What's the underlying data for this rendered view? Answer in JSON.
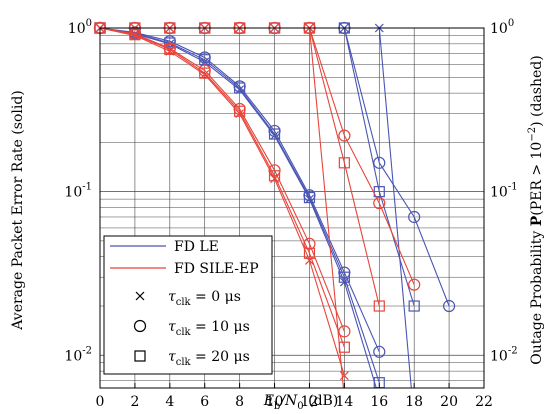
{
  "chart_data": {
    "type": "line",
    "xlabel": "E_b/N_0 (dB)",
    "ylabel_left": "Average Packet Error Rate (solid)",
    "ylabel_right": "Outage Probability P(PER > 10^-2) (dashed)",
    "xlim": [
      0,
      22
    ],
    "ylim_log": [
      -2.2,
      0
    ],
    "y_scale": "log",
    "grid": true,
    "x_ticks": [
      "0",
      "2",
      "4",
      "6",
      "8",
      "10",
      "12",
      "14",
      "16",
      "18",
      "20",
      "22"
    ],
    "y_ticks_left": [
      {
        "base": "10",
        "exp": "0",
        "val": 1
      },
      {
        "base": "10",
        "exp": "-1",
        "val": 0.1
      },
      {
        "base": "10",
        "exp": "-2",
        "val": 0.01
      }
    ],
    "y_ticks_right": [
      {
        "base": "10",
        "exp": "0",
        "val": 1
      },
      {
        "base": "10",
        "exp": "-1",
        "val": 0.1
      },
      {
        "base": "10",
        "exp": "-2",
        "val": 0.01
      }
    ],
    "colors": {
      "FD LE": "#4a55b5",
      "FD SILE-EP": "#e8443a"
    },
    "legend": {
      "placement": "bottom-left",
      "lines": [
        {
          "label": "FD LE",
          "color": "#4a55b5"
        },
        {
          "label": "FD SILE-EP",
          "color": "#e8443a"
        }
      ],
      "markers": [
        {
          "marker": "x",
          "symbol": "τ",
          "sub": "clk",
          "value": "= 0 μs"
        },
        {
          "marker": "o",
          "symbol": "τ",
          "sub": "clk",
          "value": "= 10 μs"
        },
        {
          "marker": "s",
          "symbol": "τ",
          "sub": "clk",
          "value": "= 20 μs"
        }
      ]
    },
    "series": [
      {
        "group": "FD LE",
        "kind": "solid",
        "marker": "x",
        "x": [
          0,
          2,
          4,
          6,
          8,
          10,
          12,
          14,
          16
        ],
        "y": [
          1.0,
          0.92,
          0.8,
          0.62,
          0.42,
          0.22,
          0.09,
          0.028,
          0.0055
        ]
      },
      {
        "group": "FD LE",
        "kind": "solid",
        "marker": "o",
        "x": [
          0,
          2,
          4,
          6,
          8,
          10,
          12,
          14,
          16
        ],
        "y": [
          1.0,
          0.94,
          0.83,
          0.66,
          0.44,
          0.235,
          0.095,
          0.032,
          0.0105
        ]
      },
      {
        "group": "FD LE",
        "kind": "solid",
        "marker": "s",
        "x": [
          0,
          2,
          4,
          6,
          8,
          10,
          12,
          14,
          16
        ],
        "y": [
          1.0,
          0.93,
          0.81,
          0.64,
          0.43,
          0.225,
          0.092,
          0.03,
          0.0068
        ]
      },
      {
        "group": "FD SILE-EP",
        "kind": "solid",
        "marker": "x",
        "x": [
          0,
          2,
          4,
          6,
          8,
          10,
          12,
          14
        ],
        "y": [
          1.0,
          0.9,
          0.72,
          0.52,
          0.3,
          0.12,
          0.038,
          0.0075
        ]
      },
      {
        "group": "FD SILE-EP",
        "kind": "solid",
        "marker": "o",
        "x": [
          0,
          2,
          4,
          6,
          8,
          10,
          12,
          14
        ],
        "y": [
          1.0,
          0.92,
          0.75,
          0.55,
          0.32,
          0.135,
          0.048,
          0.014
        ]
      },
      {
        "group": "FD SILE-EP",
        "kind": "solid",
        "marker": "s",
        "x": [
          0,
          2,
          4,
          6,
          8,
          10,
          12,
          14
        ],
        "y": [
          1.0,
          0.91,
          0.74,
          0.53,
          0.31,
          0.125,
          0.042,
          0.0112
        ]
      },
      {
        "group": "FD LE",
        "kind": "dashed",
        "marker": "x",
        "x": [
          0,
          2,
          4,
          6,
          8,
          10,
          12,
          14,
          16,
          18
        ],
        "y": [
          1.0,
          1.0,
          1.0,
          1.0,
          1.0,
          1.0,
          1.0,
          1.0,
          1.0,
          0.004
        ]
      },
      {
        "group": "FD LE",
        "kind": "dashed",
        "marker": "o",
        "x": [
          0,
          2,
          4,
          6,
          8,
          10,
          12,
          14,
          16,
          18,
          20
        ],
        "y": [
          1.0,
          1.0,
          1.0,
          1.0,
          1.0,
          1.0,
          1.0,
          1.0,
          0.15,
          0.07,
          0.02
        ]
      },
      {
        "group": "FD LE",
        "kind": "dashed",
        "marker": "s",
        "x": [
          0,
          2,
          4,
          6,
          8,
          10,
          12,
          14,
          16,
          18
        ],
        "y": [
          1.0,
          1.0,
          1.0,
          1.0,
          1.0,
          1.0,
          1.0,
          1.0,
          0.1,
          0.02
        ]
      },
      {
        "group": "FD SILE-EP",
        "kind": "dashed",
        "marker": "x",
        "x": [
          0,
          2,
          4,
          6,
          8,
          10,
          12,
          14,
          16
        ],
        "y": [
          1.0,
          1.0,
          1.0,
          1.0,
          1.0,
          1.0,
          1.0,
          0.0055,
          0.004
        ]
      },
      {
        "group": "FD SILE-EP",
        "kind": "dashed",
        "marker": "o",
        "x": [
          0,
          2,
          4,
          6,
          8,
          10,
          12,
          14,
          16,
          18
        ],
        "y": [
          1.0,
          1.0,
          1.0,
          1.0,
          1.0,
          1.0,
          1.0,
          0.22,
          0.085,
          0.027
        ]
      },
      {
        "group": "FD SILE-EP",
        "kind": "dashed",
        "marker": "s",
        "x": [
          0,
          2,
          4,
          6,
          8,
          10,
          12,
          14,
          16
        ],
        "y": [
          1.0,
          1.0,
          1.0,
          1.0,
          1.0,
          1.0,
          1.0,
          0.15,
          0.02
        ]
      }
    ]
  }
}
